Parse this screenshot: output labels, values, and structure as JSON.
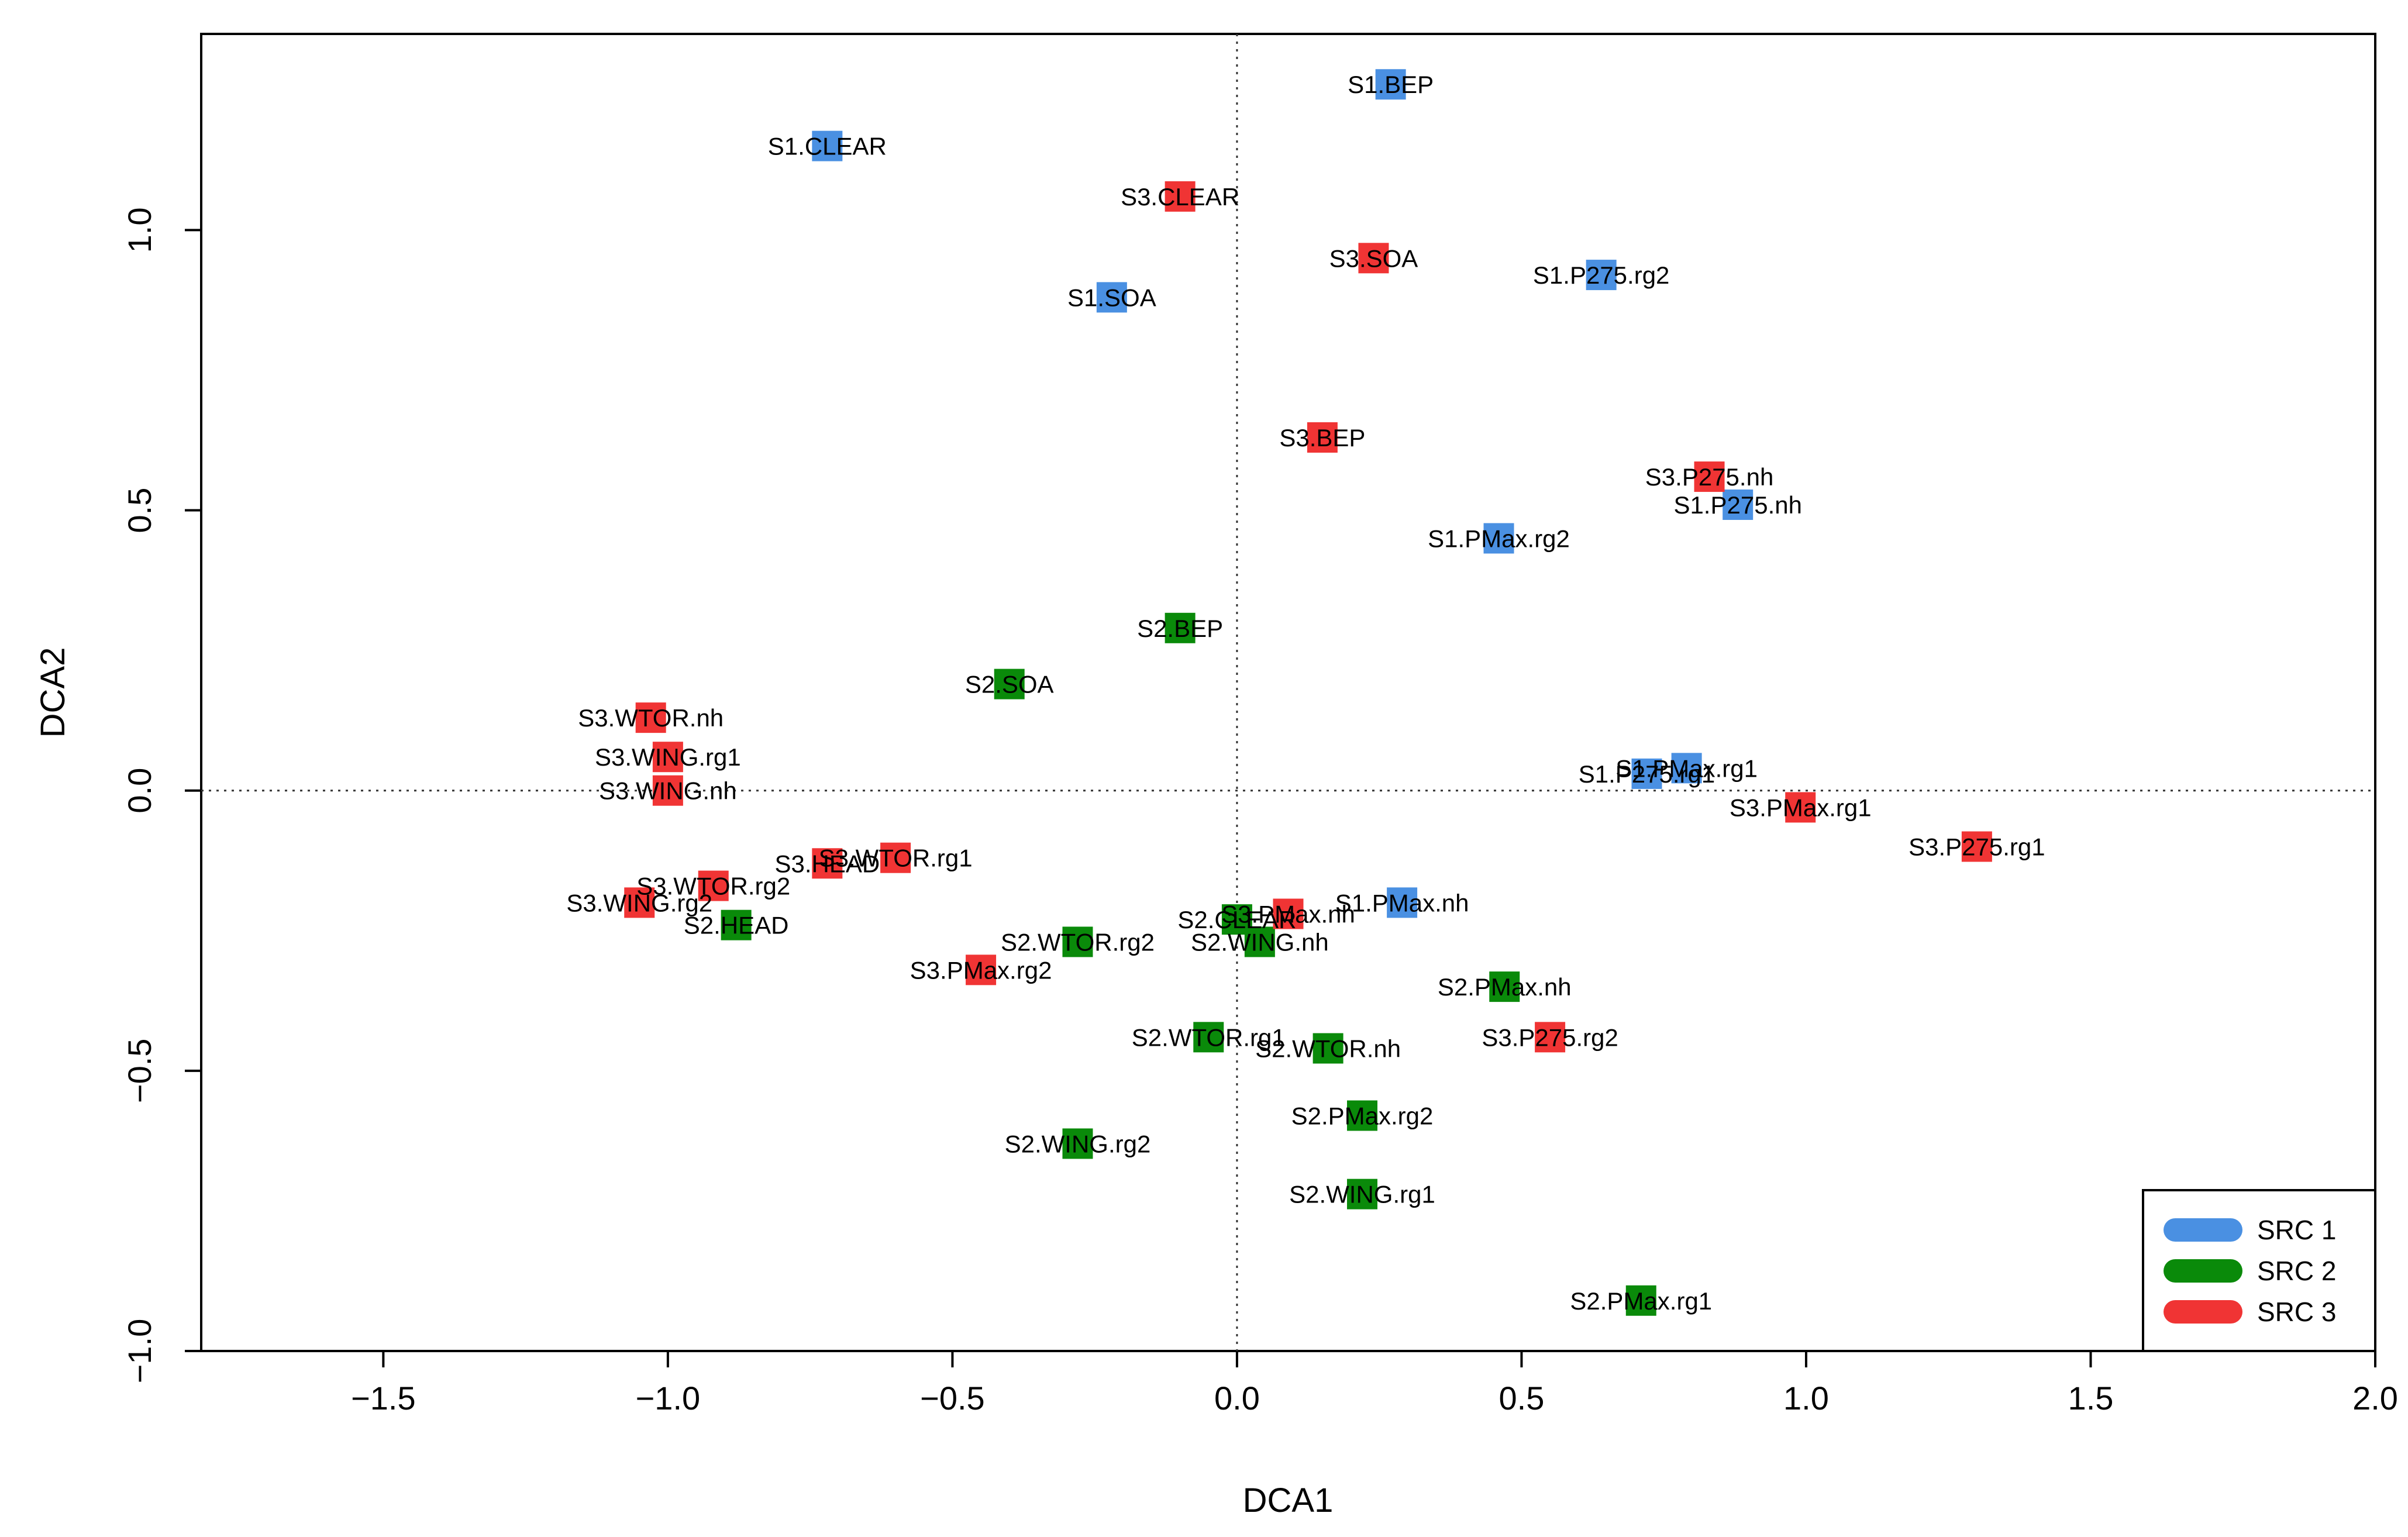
{
  "chart_data": {
    "type": "scatter",
    "title": "",
    "xlabel": "DCA1",
    "ylabel": "DCA2",
    "xlim": [
      -1.82,
      2.0
    ],
    "ylim": [
      -1.0,
      1.35
    ],
    "xticks": [
      -1.5,
      -1.0,
      -0.5,
      0.0,
      0.5,
      1.0,
      1.5,
      2.0
    ],
    "xtick_labels": [
      "−1.5",
      "−1.0",
      "−0.5",
      "0.0",
      "0.5",
      "1.0",
      "1.5",
      "2.0"
    ],
    "yticks": [
      -1.0,
      -0.5,
      0.0,
      0.5,
      1.0
    ],
    "ytick_labels": [
      "−1.0",
      "−0.5",
      "0.0",
      "0.5",
      "1.0"
    ],
    "reference_lines": {
      "x": 0,
      "y": 0,
      "style": "dotted"
    },
    "grid": false,
    "legend_position": "bottom-right",
    "series": [
      {
        "name": "SRC 1",
        "color": "#4a90e2",
        "points": [
          {
            "label": "S1.BEP",
            "x": 0.27,
            "y": 1.26
          },
          {
            "label": "S1.CLEAR",
            "x": -0.72,
            "y": 1.15
          },
          {
            "label": "S1.SOA",
            "x": -0.22,
            "y": 0.88
          },
          {
            "label": "S1.P275.rg2",
            "x": 0.64,
            "y": 0.92
          },
          {
            "label": "S1.P275.nh",
            "x": 0.88,
            "y": 0.51
          },
          {
            "label": "S1.PMax.rg2",
            "x": 0.46,
            "y": 0.45
          },
          {
            "label": "S1.PMax.rg1",
            "x": 0.79,
            "y": 0.04
          },
          {
            "label": "S1.P275.rg1",
            "x": 0.72,
            "y": 0.03
          },
          {
            "label": "S1.PMax.nh",
            "x": 0.29,
            "y": -0.2
          }
        ]
      },
      {
        "name": "SRC 2",
        "color": "#0a8a0a",
        "points": [
          {
            "label": "S2.BEP",
            "x": -0.1,
            "y": 0.29
          },
          {
            "label": "S2.SOA",
            "x": -0.4,
            "y": 0.19
          },
          {
            "label": "S2.HEAD",
            "x": -0.88,
            "y": -0.24
          },
          {
            "label": "S2.WTOR.rg2",
            "x": -0.28,
            "y": -0.27
          },
          {
            "label": "S2.CLEAR",
            "x": 0.0,
            "y": -0.23
          },
          {
            "label": "S2.WING.nh",
            "x": 0.04,
            "y": -0.27
          },
          {
            "label": "S2.PMax.nh",
            "x": 0.47,
            "y": -0.35
          },
          {
            "label": "S2.WTOR.rg1",
            "x": -0.05,
            "y": -0.44
          },
          {
            "label": "S2.WTOR.nh",
            "x": 0.16,
            "y": -0.46
          },
          {
            "label": "S2.PMax.rg2",
            "x": 0.22,
            "y": -0.58
          },
          {
            "label": "S2.WING.rg2",
            "x": -0.28,
            "y": -0.63
          },
          {
            "label": "S2.WING.rg1",
            "x": 0.22,
            "y": -0.72
          },
          {
            "label": "S2.PMax.rg1",
            "x": 0.71,
            "y": -0.91
          }
        ]
      },
      {
        "name": "SRC 3",
        "color": "#f03434",
        "points": [
          {
            "label": "S3.CLEAR",
            "x": -0.1,
            "y": 1.06
          },
          {
            "label": "S3.SOA",
            "x": 0.24,
            "y": 0.95
          },
          {
            "label": "S3.BEP",
            "x": 0.15,
            "y": 0.63
          },
          {
            "label": "S3.P275.nh",
            "x": 0.83,
            "y": 0.56
          },
          {
            "label": "S3.WTOR.nh",
            "x": -1.03,
            "y": 0.13
          },
          {
            "label": "S3.WING.rg1",
            "x": -1.0,
            "y": 0.06
          },
          {
            "label": "S3.WING.nh",
            "x": -1.0,
            "y": 0.0
          },
          {
            "label": "S3.PMax.rg1",
            "x": 0.99,
            "y": -0.03
          },
          {
            "label": "S3.P275.rg1",
            "x": 1.3,
            "y": -0.1
          },
          {
            "label": "S3.WTOR.rg1",
            "x": -0.6,
            "y": -0.12
          },
          {
            "label": "S3.HEAD",
            "x": -0.72,
            "y": -0.13
          },
          {
            "label": "S3.WTOR.rg2",
            "x": -0.92,
            "y": -0.17
          },
          {
            "label": "S3.WING.rg2",
            "x": -1.05,
            "y": -0.2
          },
          {
            "label": "S3.PMax.nh",
            "x": 0.09,
            "y": -0.22
          },
          {
            "label": "S3.PMax.rg2",
            "x": -0.45,
            "y": -0.32
          },
          {
            "label": "S3.P275.rg2",
            "x": 0.55,
            "y": -0.44
          }
        ]
      }
    ]
  }
}
